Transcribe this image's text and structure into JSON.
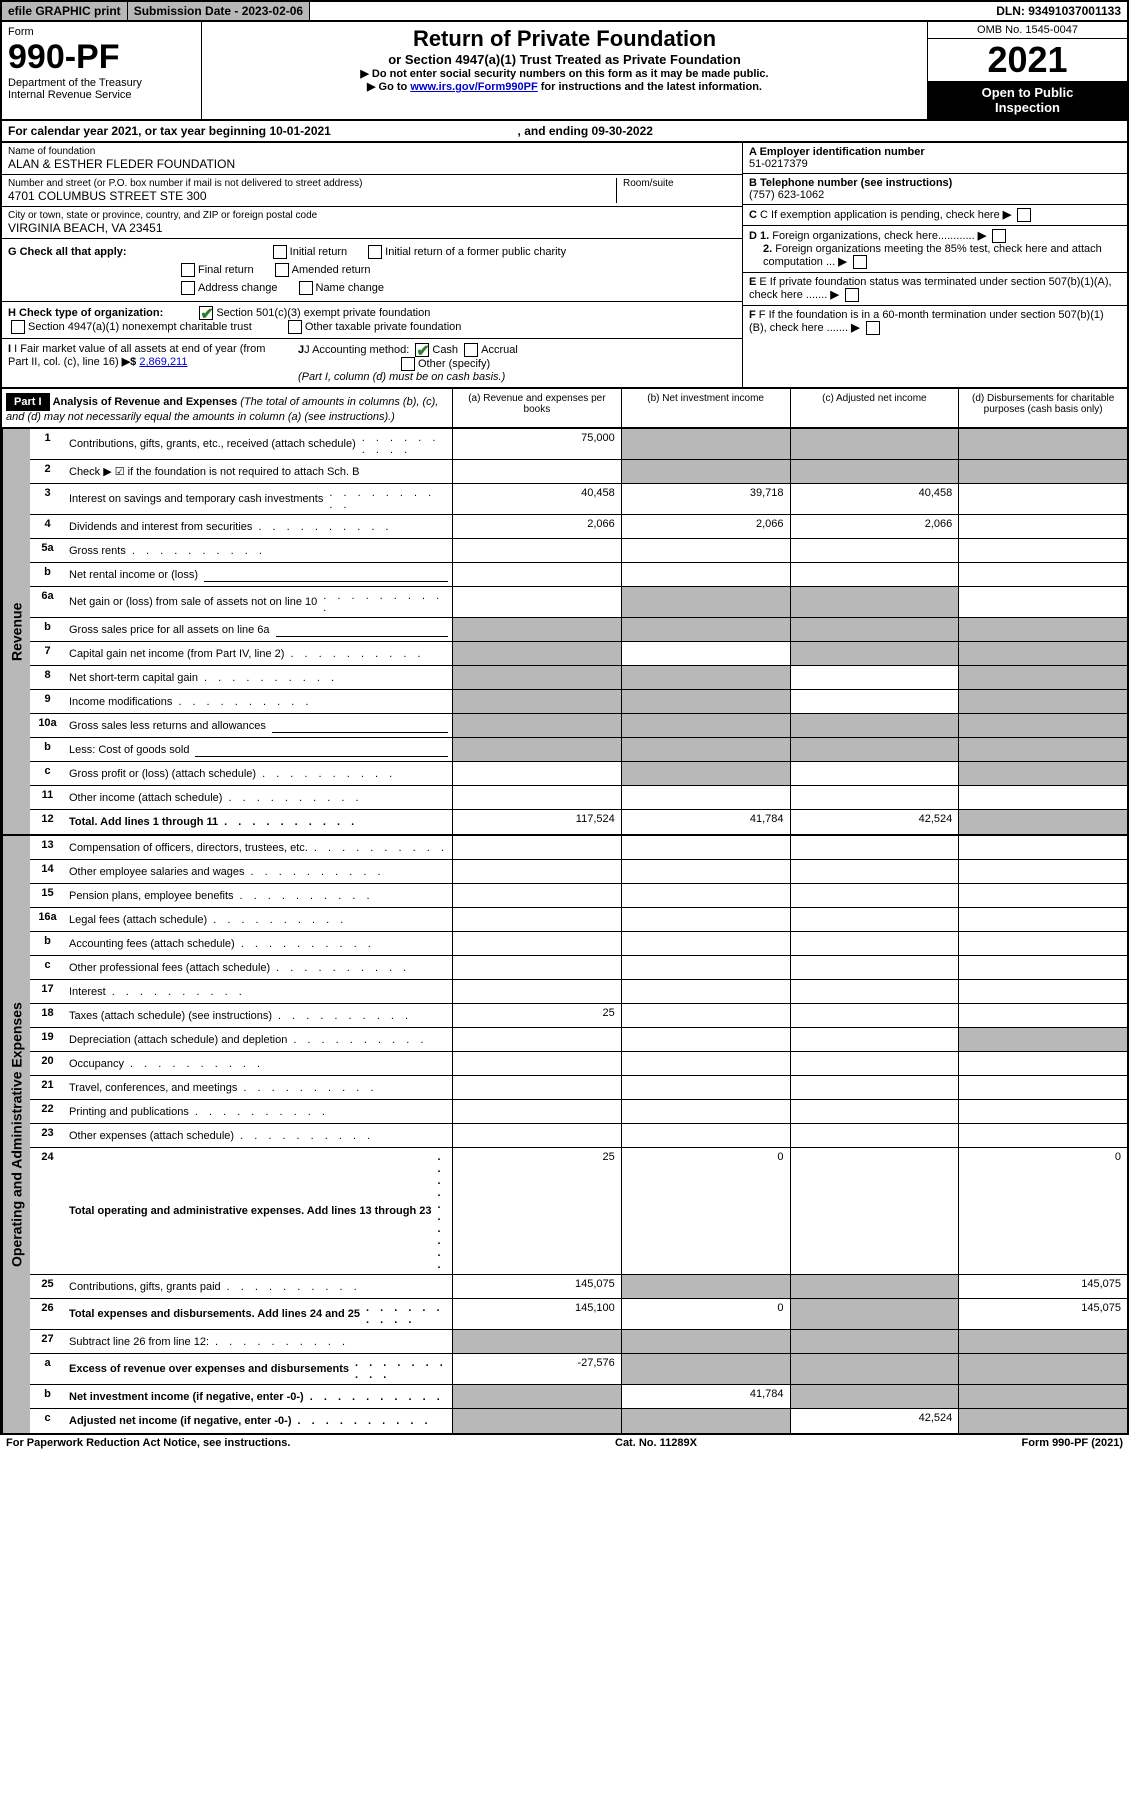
{
  "topbar": {
    "efile": "efile GRAPHIC print",
    "sub_label": "Submission Date - 2023-02-06",
    "dln": "DLN: 93491037001133"
  },
  "header": {
    "form_label": "Form",
    "form_num": "990-PF",
    "dept": "Department of the Treasury\nInternal Revenue Service",
    "title": "Return of Private Foundation",
    "subtitle": "or Section 4947(a)(1) Trust Treated as Private Foundation",
    "note_arrow": "▶",
    "note1": "Do not enter social security numbers on this form as it may be made public.",
    "note2_pre": "Go to ",
    "note2_link": "www.irs.gov/Form990PF",
    "note2_post": " for instructions and the latest information.",
    "omb": "OMB No. 1545-0047",
    "year": "2021",
    "open": "Open to Public\nInspection"
  },
  "cal_year": {
    "pre": "For calendar year 2021, or tax year beginning ",
    "begin": "10-01-2021",
    "mid": " , and ending ",
    "end": "09-30-2022"
  },
  "info": {
    "name_label": "Name of foundation",
    "name": "ALAN & ESTHER FLEDER FOUNDATION",
    "street_label": "Number and street (or P.O. box number if mail is not delivered to street address)",
    "street": "4701 COLUMBUS STREET STE 300",
    "room_label": "Room/suite",
    "city_label": "City or town, state or province, country, and ZIP or foreign postal code",
    "city": "VIRGINIA BEACH, VA  23451",
    "ein_label": "A Employer identification number",
    "ein": "51-0217379",
    "tel_label": "B Telephone number (see instructions)",
    "tel": "(757) 623-1062",
    "c_label": "C If exemption application is pending, check here",
    "d1_label": "D 1. Foreign organizations, check here............",
    "d2_label": "2. Foreign organizations meeting the 85% test, check here and attach computation ...",
    "e_label": "E  If private foundation status was terminated under section 507(b)(1)(A), check here .......",
    "f_label": "F  If the foundation is in a 60-month termination under section 507(b)(1)(B), check here .......",
    "g_label": "G Check all that apply:",
    "g_opts": [
      "Initial return",
      "Initial return of a former public charity",
      "Final return",
      "Amended return",
      "Address change",
      "Name change"
    ],
    "h_label": "H Check type of organization:",
    "h_opt1": "Section 501(c)(3) exempt private foundation",
    "h_opt2": "Section 4947(a)(1) nonexempt charitable trust",
    "h_opt3": "Other taxable private foundation",
    "i_label": "I Fair market value of all assets at end of year (from Part II, col. (c), line 16)",
    "i_arrow": "▶$",
    "i_val": "2,869,211",
    "j_label": "J Accounting method:",
    "j_cash": "Cash",
    "j_accrual": "Accrual",
    "j_other": "Other (specify)",
    "j_note": "(Part I, column (d) must be on cash basis.)"
  },
  "part1": {
    "label": "Part I",
    "title": "Analysis of Revenue and Expenses",
    "title_note": "(The total of amounts in columns (b), (c), and (d) may not necessarily equal the amounts in column (a) (see instructions).)",
    "col_a": "(a)  Revenue and expenses per books",
    "col_b": "(b)  Net investment income",
    "col_c": "(c)  Adjusted net income",
    "col_d": "(d)  Disbursements for charitable purposes (cash basis only)"
  },
  "sections": {
    "revenue": "Revenue",
    "expenses": "Operating and Administrative Expenses"
  },
  "rows": [
    {
      "n": "1",
      "desc": "Contributions, gifts, grants, etc., received (attach schedule)",
      "a": "75,000",
      "shaded": [
        "b",
        "c",
        "d"
      ]
    },
    {
      "n": "2",
      "desc": "Check ▶ ☑ if the foundation is not required to attach Sch. B",
      "nodata": true,
      "shaded": [
        "b",
        "c",
        "d"
      ]
    },
    {
      "n": "3",
      "desc": "Interest on savings and temporary cash investments",
      "a": "40,458",
      "b": "39,718",
      "c": "40,458"
    },
    {
      "n": "4",
      "desc": "Dividends and interest from securities",
      "a": "2,066",
      "b": "2,066",
      "c": "2,066"
    },
    {
      "n": "5a",
      "desc": "Gross rents"
    },
    {
      "n": "b",
      "desc": "Net rental income or (loss)",
      "inline": true
    },
    {
      "n": "6a",
      "desc": "Net gain or (loss) from sale of assets not on line 10",
      "shaded": [
        "b",
        "c"
      ]
    },
    {
      "n": "b",
      "desc": "Gross sales price for all assets on line 6a",
      "inline": true,
      "shaded": [
        "a",
        "b",
        "c",
        "d"
      ]
    },
    {
      "n": "7",
      "desc": "Capital gain net income (from Part IV, line 2)",
      "shaded": [
        "a",
        "c",
        "d"
      ]
    },
    {
      "n": "8",
      "desc": "Net short-term capital gain",
      "shaded": [
        "a",
        "b",
        "d"
      ]
    },
    {
      "n": "9",
      "desc": "Income modifications",
      "shaded": [
        "a",
        "b",
        "d"
      ]
    },
    {
      "n": "10a",
      "desc": "Gross sales less returns and allowances",
      "inline": true,
      "shaded": [
        "a",
        "b",
        "c",
        "d"
      ]
    },
    {
      "n": "b",
      "desc": "Less: Cost of goods sold",
      "inline": true,
      "shaded": [
        "a",
        "b",
        "c",
        "d"
      ]
    },
    {
      "n": "c",
      "desc": "Gross profit or (loss) (attach schedule)",
      "shaded": [
        "b",
        "d"
      ]
    },
    {
      "n": "11",
      "desc": "Other income (attach schedule)"
    },
    {
      "n": "12",
      "desc": "Total. Add lines 1 through 11",
      "bold": true,
      "a": "117,524",
      "b": "41,784",
      "c": "42,524",
      "shaded": [
        "d"
      ]
    }
  ],
  "exp_rows": [
    {
      "n": "13",
      "desc": "Compensation of officers, directors, trustees, etc."
    },
    {
      "n": "14",
      "desc": "Other employee salaries and wages"
    },
    {
      "n": "15",
      "desc": "Pension plans, employee benefits"
    },
    {
      "n": "16a",
      "desc": "Legal fees (attach schedule)"
    },
    {
      "n": "b",
      "desc": "Accounting fees (attach schedule)"
    },
    {
      "n": "c",
      "desc": "Other professional fees (attach schedule)"
    },
    {
      "n": "17",
      "desc": "Interest"
    },
    {
      "n": "18",
      "desc": "Taxes (attach schedule) (see instructions)",
      "a": "25"
    },
    {
      "n": "19",
      "desc": "Depreciation (attach schedule) and depletion",
      "shaded": [
        "d"
      ]
    },
    {
      "n": "20",
      "desc": "Occupancy"
    },
    {
      "n": "21",
      "desc": "Travel, conferences, and meetings"
    },
    {
      "n": "22",
      "desc": "Printing and publications"
    },
    {
      "n": "23",
      "desc": "Other expenses (attach schedule)"
    },
    {
      "n": "24",
      "desc": "Total operating and administrative expenses. Add lines 13 through 23",
      "bold": true,
      "a": "25",
      "b": "0",
      "d": "0"
    },
    {
      "n": "25",
      "desc": "Contributions, gifts, grants paid",
      "a": "145,075",
      "shaded": [
        "b",
        "c"
      ],
      "d": "145,075"
    },
    {
      "n": "26",
      "desc": "Total expenses and disbursements. Add lines 24 and 25",
      "bold": true,
      "a": "145,100",
      "b": "0",
      "shaded": [
        "c"
      ],
      "d": "145,075"
    },
    {
      "n": "27",
      "desc": "Subtract line 26 from line 12:",
      "shaded": [
        "a",
        "b",
        "c",
        "d"
      ]
    },
    {
      "n": "a",
      "desc": "Excess of revenue over expenses and disbursements",
      "bold": true,
      "a": "-27,576",
      "shaded": [
        "b",
        "c",
        "d"
      ]
    },
    {
      "n": "b",
      "desc": "Net investment income (if negative, enter -0-)",
      "bold": true,
      "shaded": [
        "a"
      ],
      "b": "41,784",
      "shaded2": [
        "c",
        "d"
      ]
    },
    {
      "n": "c",
      "desc": "Adjusted net income (if negative, enter -0-)",
      "bold": true,
      "shaded": [
        "a",
        "b"
      ],
      "c": "42,524",
      "shaded2": [
        "d"
      ]
    }
  ],
  "footer": {
    "left": "For Paperwork Reduction Act Notice, see instructions.",
    "mid": "Cat. No. 11289X",
    "right": "Form 990-PF (2021)"
  }
}
